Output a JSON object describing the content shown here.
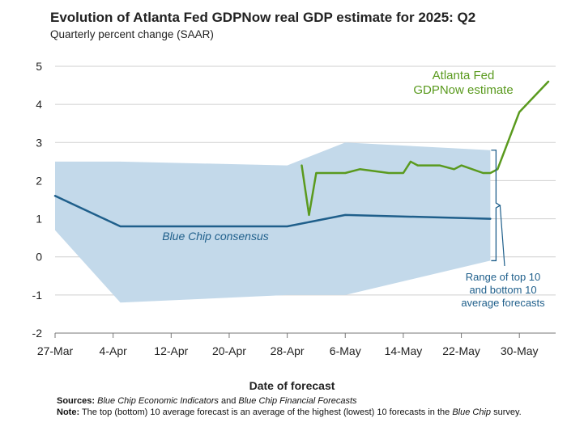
{
  "header": {
    "title": "Evolution of Atlanta Fed GDPNow real GDP estimate for 2025: Q2",
    "subtitle": "Quarterly percent change (SAAR)"
  },
  "chart_data": {
    "type": "line",
    "xlabel": "Date of forecast",
    "ylim": [
      -2,
      5
    ],
    "yticks": [
      "5",
      "4",
      "3",
      "2",
      "1",
      "0",
      "-1",
      "-2"
    ],
    "ytick_values": [
      5,
      4,
      3,
      2,
      1,
      0,
      -1,
      -2
    ],
    "x_axis_start": "2025-03-27",
    "xticks": [
      "27-Mar",
      "4-Apr",
      "12-Apr",
      "20-Apr",
      "28-Apr",
      "6-May",
      "14-May",
      "22-May",
      "30-May"
    ],
    "xtick_dates": [
      "2025-03-27",
      "2025-04-04",
      "2025-04-12",
      "2025-04-20",
      "2025-04-28",
      "2025-05-06",
      "2025-05-14",
      "2025-05-22",
      "2025-05-30"
    ],
    "x_range_dates": [
      "2025-03-27",
      "2025-06-04"
    ],
    "grid": "horizontal",
    "colors": {
      "gdpnow": "#5a9a1e",
      "bluechip": "#1f5f8b",
      "band": "#c3d9ea",
      "grid": "#cfcfcf",
      "label_range": "#1f5f8b"
    },
    "series": [
      {
        "name": "Atlanta Fed GDPNow estimate",
        "x": [
          "2025-04-30",
          "2025-05-01",
          "2025-05-02",
          "2025-05-05",
          "2025-05-06",
          "2025-05-08",
          "2025-05-12",
          "2025-05-14",
          "2025-05-15",
          "2025-05-16",
          "2025-05-19",
          "2025-05-21",
          "2025-05-22",
          "2025-05-25",
          "2025-05-26",
          "2025-05-27",
          "2025-05-30",
          "2025-06-03"
        ],
        "y": [
          2.4,
          1.1,
          2.2,
          2.2,
          2.2,
          2.3,
          2.2,
          2.2,
          2.5,
          2.4,
          2.4,
          2.3,
          2.4,
          2.2,
          2.2,
          2.3,
          3.8,
          4.6
        ]
      },
      {
        "name": "Blue Chip consensus",
        "x": [
          "2025-03-27",
          "2025-04-05",
          "2025-04-28",
          "2025-05-06",
          "2025-05-26"
        ],
        "y": [
          1.6,
          0.8,
          0.8,
          1.1,
          1.0
        ]
      }
    ],
    "band": {
      "name": "Range of top 10 and bottom 10 average forecasts",
      "x": [
        "2025-03-27",
        "2025-04-05",
        "2025-04-28",
        "2025-05-06",
        "2025-05-26"
      ],
      "upper": [
        2.5,
        2.5,
        2.4,
        3.0,
        2.8
      ],
      "lower": [
        0.7,
        -1.2,
        -1.0,
        -1.0,
        -0.1
      ]
    },
    "annotations": {
      "gdpnow_label": [
        "Atlanta Fed",
        "GDPNow estimate"
      ],
      "bluechip_label": "Blue Chip consensus",
      "range_label": [
        "Range of top 10",
        "and bottom 10",
        "average forecasts"
      ]
    }
  },
  "notes": {
    "sources_label": "Sources:",
    "sources_source1": "Blue Chip Economic Indicators",
    "sources_and": " and ",
    "sources_source2": "Blue Chip Financial Forecasts",
    "note_label": "Note:",
    "note_text_1": " The top (bottom) 10 average forecast is an average of the highest (lowest) 10 forecasts in the ",
    "note_blue_chip": "Blue Chip",
    "note_text_2": " survey."
  }
}
